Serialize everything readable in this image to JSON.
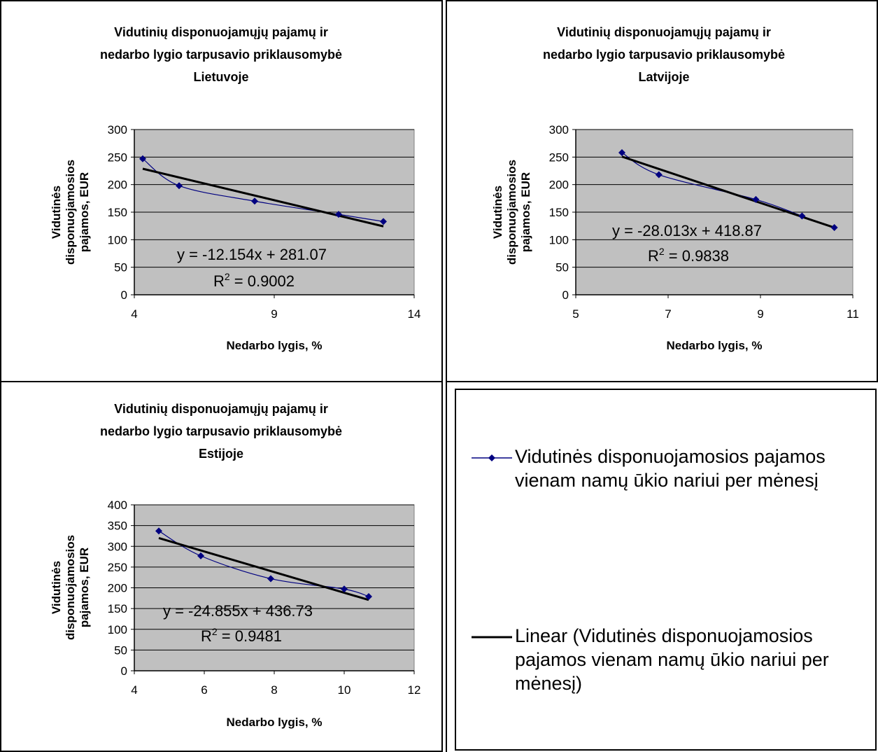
{
  "colors": {
    "plot_area": "#c0c0c0",
    "gridline": "#000000",
    "data_series": "#000080",
    "trendline": "#000000"
  },
  "chart_data": [
    {
      "type": "scatter",
      "title": [
        "Vidutinių disponuojamųjų pajamų ir",
        "nedarbo lygio tarpusavio priklausomybė",
        "Lietuvoje"
      ],
      "xlabel": "Nedarbo lygis, %",
      "ylabel": [
        "Vidutinės",
        "disponuojamosios",
        "pajamos, EUR"
      ],
      "xlim": [
        4,
        14
      ],
      "ylim": [
        0,
        300
      ],
      "xticks": [
        "4",
        "9",
        "14"
      ],
      "yticks": [
        "0",
        "50",
        "100",
        "150",
        "200",
        "250",
        "300"
      ],
      "grid": true,
      "series": [
        {
          "name": "Vidutinės disponuojamosios pajamos vienam namų ūkio nariui per mėnesį",
          "x": [
            4.3,
            5.6,
            8.3,
            11.3,
            12.9
          ],
          "y": [
            247,
            198,
            170,
            146,
            133
          ]
        }
      ],
      "trendline": {
        "slope": -12.154,
        "intercept": 281.07,
        "x_range": [
          4.3,
          12.9
        ]
      },
      "equation": "y = -12.154x + 281.07",
      "r2_label": "R",
      "r2_value": " = 0.9002"
    },
    {
      "type": "scatter",
      "title": [
        "Vidutinių disponuojamųjų pajamų ir",
        "nedarbo lygio tarpusavio priklausomybė",
        "Latvijoje"
      ],
      "xlabel": "Nedarbo lygis, %",
      "ylabel": [
        "Vidutinės",
        "disponuojamosios",
        "pajamos, EUR"
      ],
      "xlim": [
        5,
        11
      ],
      "ylim": [
        0,
        300
      ],
      "xticks": [
        "5",
        "7",
        "9",
        "11"
      ],
      "yticks": [
        "0",
        "50",
        "100",
        "150",
        "200",
        "250",
        "300"
      ],
      "grid": true,
      "series": [
        {
          "name": "Vidutinės disponuojamosios pajamos vienam namų ūkio nariui per mėnesį",
          "x": [
            6.0,
            6.8,
            8.9,
            9.9,
            10.6
          ],
          "y": [
            258,
            218,
            173,
            143,
            122
          ]
        }
      ],
      "trendline": {
        "slope": -28.013,
        "intercept": 418.87,
        "x_range": [
          6.0,
          10.6
        ]
      },
      "equation": "y = -28.013x + 418.87",
      "r2_label": "R",
      "r2_value": " = 0.9838"
    },
    {
      "type": "scatter",
      "title": [
        "Vidutinių disponuojamųjų pajamų ir",
        "nedarbo lygio tarpusavio priklausomybė",
        "Estijoje"
      ],
      "xlabel": "Nedarbo lygis, %",
      "ylabel": [
        "Vidutinės",
        "disponuojamosios",
        "pajamos, EUR"
      ],
      "xlim": [
        4,
        12
      ],
      "ylim": [
        0,
        400
      ],
      "xticks": [
        "4",
        "6",
        "8",
        "10",
        "12"
      ],
      "yticks": [
        "0",
        "50",
        "100",
        "150",
        "200",
        "250",
        "300",
        "350",
        "400"
      ],
      "grid": true,
      "series": [
        {
          "name": "Vidutinės disponuojamosios pajamos vienam namų ūkio nariui per mėnesį",
          "x": [
            4.7,
            5.9,
            7.9,
            10.0,
            10.7
          ],
          "y": [
            337,
            277,
            222,
            197,
            179
          ]
        }
      ],
      "trendline": {
        "slope": -24.855,
        "intercept": 436.73,
        "x_range": [
          4.7,
          10.7
        ]
      },
      "equation": "y = -24.855x + 436.73",
      "r2_label": "R",
      "r2_value": " = 0.9481"
    }
  ],
  "legend": {
    "series_label": "Vidutinės disponuojamosios pajamos vienam namų ūkio nariui per mėnesį",
    "trend_label": "Linear (Vidutinės disponuojamosios pajamos vienam namų ūkio nariui per mėnesį)"
  }
}
